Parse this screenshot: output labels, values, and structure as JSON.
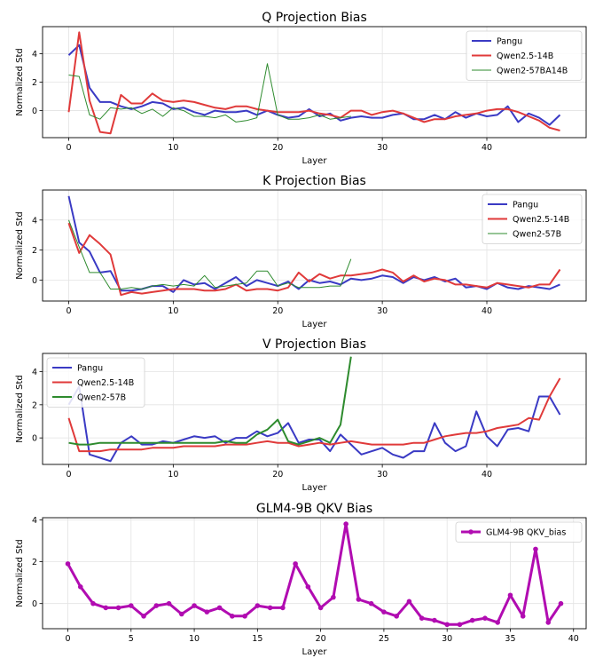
{
  "chart_data": [
    {
      "type": "line",
      "title": "Q Projection Bias",
      "xlabel": "Layer",
      "ylabel": "Normalized Std",
      "xlim": [
        -2.5,
        49.5
      ],
      "ylim": [
        -1.9,
        5.9
      ],
      "xticks": [
        0,
        10,
        20,
        30,
        40
      ],
      "yticks": [
        0,
        2,
        4
      ],
      "grid": true,
      "legend_position": "top-right",
      "series": [
        {
          "name": "Pangu",
          "color": "#3a3ac4",
          "width": 2,
          "x": [
            0,
            1,
            2,
            3,
            4,
            5,
            6,
            7,
            8,
            9,
            10,
            11,
            12,
            13,
            14,
            15,
            16,
            17,
            18,
            19,
            20,
            21,
            22,
            23,
            24,
            25,
            26,
            27,
            28,
            29,
            30,
            31,
            32,
            33,
            34,
            35,
            36,
            37,
            38,
            39,
            40,
            41,
            42,
            43,
            44,
            45,
            46,
            47
          ],
          "values": [
            3.9,
            4.6,
            1.6,
            0.6,
            0.6,
            0.3,
            0.1,
            0.3,
            0.6,
            0.5,
            0.1,
            0.2,
            -0.1,
            -0.3,
            0.0,
            -0.1,
            -0.1,
            0.0,
            -0.3,
            0.0,
            -0.3,
            -0.5,
            -0.4,
            0.1,
            -0.4,
            -0.2,
            -0.7,
            -0.5,
            -0.4,
            -0.5,
            -0.5,
            -0.3,
            -0.2,
            -0.6,
            -0.6,
            -0.3,
            -0.6,
            -0.1,
            -0.5,
            -0.2,
            -0.4,
            -0.3,
            0.3,
            -0.8,
            -0.2,
            -0.5,
            -1.0,
            -0.3
          ]
        },
        {
          "name": "Qwen2.5-14B",
          "color": "#e03a3a",
          "width": 2,
          "x": [
            0,
            1,
            2,
            3,
            4,
            5,
            6,
            7,
            8,
            9,
            10,
            11,
            12,
            13,
            14,
            15,
            16,
            17,
            18,
            19,
            20,
            21,
            22,
            23,
            24,
            25,
            26,
            27,
            28,
            29,
            30,
            31,
            32,
            33,
            34,
            35,
            36,
            37,
            38,
            39,
            40,
            41,
            42,
            43,
            44,
            45,
            46,
            47
          ],
          "values": [
            -0.1,
            5.5,
            0.7,
            -1.5,
            -1.6,
            1.1,
            0.5,
            0.5,
            1.2,
            0.7,
            0.6,
            0.7,
            0.6,
            0.4,
            0.2,
            0.1,
            0.3,
            0.3,
            0.1,
            0.0,
            -0.1,
            -0.1,
            -0.1,
            0.0,
            -0.2,
            -0.3,
            -0.5,
            0.0,
            0.0,
            -0.3,
            -0.1,
            0.0,
            -0.2,
            -0.5,
            -0.8,
            -0.6,
            -0.6,
            -0.4,
            -0.3,
            -0.2,
            0.0,
            0.1,
            0.1,
            -0.1,
            -0.4,
            -0.7,
            -1.2,
            -1.4
          ]
        },
        {
          "name": "Qwen2-57BA14B",
          "color": "#2e8b2e",
          "width": 1,
          "x": [
            0,
            1,
            2,
            3,
            4,
            5,
            6,
            7,
            8,
            9,
            10,
            11,
            12,
            13,
            14,
            15,
            16,
            17,
            18,
            19,
            20,
            21,
            22,
            23,
            24,
            25,
            26,
            27
          ],
          "values": [
            2.5,
            2.4,
            -0.3,
            -0.6,
            0.2,
            0.1,
            0.2,
            -0.2,
            0.1,
            -0.4,
            0.2,
            0.0,
            -0.4,
            -0.4,
            -0.5,
            -0.3,
            -0.8,
            -0.7,
            -0.5,
            3.3,
            -0.3,
            -0.6,
            -0.6,
            -0.5,
            -0.3,
            -0.6,
            -0.5,
            -0.4
          ]
        }
      ]
    },
    {
      "type": "line",
      "title": "K Projection Bias",
      "xlabel": "Layer",
      "ylabel": "Normalized Std",
      "xlim": [
        -2.5,
        49.5
      ],
      "ylim": [
        -1.4,
        6.0
      ],
      "xticks": [
        0,
        10,
        20,
        30,
        40
      ],
      "yticks": [
        0,
        2,
        4
      ],
      "grid": true,
      "legend_position": "top-right",
      "series": [
        {
          "name": "Pangu",
          "color": "#3a3ac4",
          "width": 2,
          "x": [
            0,
            1,
            2,
            3,
            4,
            5,
            6,
            7,
            8,
            9,
            10,
            11,
            12,
            13,
            14,
            15,
            16,
            17,
            18,
            19,
            20,
            21,
            22,
            23,
            24,
            25,
            26,
            27,
            28,
            29,
            30,
            31,
            32,
            33,
            34,
            35,
            36,
            37,
            38,
            39,
            40,
            41,
            42,
            43,
            44,
            45,
            46,
            47
          ],
          "values": [
            5.6,
            2.5,
            1.9,
            0.5,
            0.6,
            -0.7,
            -0.7,
            -0.6,
            -0.4,
            -0.4,
            -0.8,
            0.0,
            -0.3,
            -0.2,
            -0.6,
            -0.2,
            0.2,
            -0.4,
            0.0,
            -0.2,
            -0.4,
            -0.1,
            -0.6,
            0.0,
            -0.2,
            -0.1,
            -0.3,
            0.1,
            0.0,
            0.1,
            0.3,
            0.2,
            -0.2,
            0.2,
            0.0,
            0.2,
            -0.1,
            0.1,
            -0.5,
            -0.4,
            -0.6,
            -0.2,
            -0.5,
            -0.6,
            -0.4,
            -0.5,
            -0.6,
            -0.3
          ]
        },
        {
          "name": "Qwen2.5-14B",
          "color": "#e03a3a",
          "width": 2,
          "x": [
            0,
            1,
            2,
            3,
            4,
            5,
            6,
            7,
            8,
            9,
            10,
            11,
            12,
            13,
            14,
            15,
            16,
            17,
            18,
            19,
            20,
            21,
            22,
            23,
            24,
            25,
            26,
            27,
            28,
            29,
            30,
            31,
            32,
            33,
            34,
            35,
            36,
            37,
            38,
            39,
            40,
            41,
            42,
            43,
            44,
            45,
            46,
            47
          ],
          "values": [
            3.8,
            1.8,
            3.0,
            2.4,
            1.7,
            -1.0,
            -0.8,
            -0.9,
            -0.8,
            -0.7,
            -0.6,
            -0.6,
            -0.6,
            -0.7,
            -0.7,
            -0.6,
            -0.3,
            -0.7,
            -0.6,
            -0.6,
            -0.7,
            -0.5,
            0.5,
            -0.1,
            0.4,
            0.1,
            0.3,
            0.3,
            0.4,
            0.5,
            0.7,
            0.5,
            -0.1,
            0.3,
            -0.1,
            0.1,
            0.0,
            -0.3,
            -0.3,
            -0.4,
            -0.5,
            -0.2,
            -0.3,
            -0.4,
            -0.5,
            -0.3,
            -0.3,
            0.7
          ]
        },
        {
          "name": "Qwen2-57B",
          "color": "#2e8b2e",
          "width": 1,
          "x": [
            0,
            1,
            2,
            3,
            4,
            5,
            6,
            7,
            8,
            9,
            10,
            11,
            12,
            13,
            14,
            15,
            16,
            17,
            18,
            19,
            20,
            21,
            22,
            23,
            24,
            25,
            26,
            27
          ],
          "values": [
            4.0,
            2.2,
            0.5,
            0.5,
            -0.6,
            -0.6,
            -0.5,
            -0.6,
            -0.4,
            -0.3,
            -0.4,
            -0.3,
            -0.4,
            0.3,
            -0.5,
            -0.4,
            -0.3,
            -0.2,
            0.6,
            0.6,
            -0.4,
            -0.2,
            -0.5,
            -0.5,
            -0.5,
            -0.4,
            -0.4,
            1.4
          ]
        }
      ]
    },
    {
      "type": "line",
      "title": "V Projection Bias",
      "xlabel": "Layer",
      "ylabel": "Normalized Std",
      "xlim": [
        -2.5,
        49.5
      ],
      "ylim": [
        -1.6,
        5.1
      ],
      "xticks": [
        0,
        10,
        20,
        30,
        40
      ],
      "yticks": [
        0,
        2,
        4
      ],
      "grid": true,
      "legend_position": "top-left",
      "series": [
        {
          "name": "Pangu",
          "color": "#3a3ac4",
          "width": 2,
          "x": [
            0,
            1,
            2,
            3,
            4,
            5,
            6,
            7,
            8,
            9,
            10,
            11,
            12,
            13,
            14,
            15,
            16,
            17,
            18,
            19,
            20,
            21,
            22,
            23,
            24,
            25,
            26,
            27,
            28,
            29,
            30,
            31,
            32,
            33,
            34,
            35,
            36,
            37,
            38,
            39,
            40,
            41,
            42,
            43,
            44,
            45,
            46,
            47
          ],
          "values": [
            2.0,
            3.1,
            -1.0,
            -1.2,
            -1.4,
            -0.3,
            0.1,
            -0.4,
            -0.4,
            -0.2,
            -0.3,
            -0.1,
            0.1,
            0.0,
            0.1,
            -0.3,
            0.0,
            0.0,
            0.4,
            0.1,
            0.3,
            0.9,
            -0.3,
            -0.1,
            -0.1,
            -0.8,
            0.2,
            -0.4,
            -1.0,
            -0.8,
            -0.6,
            -1.0,
            -1.2,
            -0.8,
            -0.8,
            0.9,
            -0.3,
            -0.8,
            -0.5,
            1.6,
            0.1,
            -0.5,
            0.5,
            0.6,
            0.4,
            2.5,
            2.5,
            1.4
          ]
        },
        {
          "name": "Qwen2.5-14B",
          "color": "#e03a3a",
          "width": 2,
          "x": [
            0,
            1,
            2,
            3,
            4,
            5,
            6,
            7,
            8,
            9,
            10,
            11,
            12,
            13,
            14,
            15,
            16,
            17,
            18,
            19,
            20,
            21,
            22,
            23,
            24,
            25,
            26,
            27,
            28,
            29,
            30,
            31,
            32,
            33,
            34,
            35,
            36,
            37,
            38,
            39,
            40,
            41,
            42,
            43,
            44,
            45,
            46,
            47
          ],
          "values": [
            1.2,
            -0.8,
            -0.8,
            -0.8,
            -0.7,
            -0.7,
            -0.7,
            -0.7,
            -0.6,
            -0.6,
            -0.6,
            -0.5,
            -0.5,
            -0.5,
            -0.5,
            -0.4,
            -0.4,
            -0.4,
            -0.3,
            -0.2,
            -0.3,
            -0.3,
            -0.5,
            -0.4,
            -0.3,
            -0.4,
            -0.3,
            -0.2,
            -0.3,
            -0.4,
            -0.4,
            -0.4,
            -0.4,
            -0.3,
            -0.3,
            -0.1,
            0.1,
            0.2,
            0.3,
            0.3,
            0.4,
            0.6,
            0.7,
            0.8,
            1.2,
            1.1,
            2.5,
            3.6
          ]
        },
        {
          "name": "Qwen2-57B",
          "color": "#2e8b2e",
          "width": 2,
          "x": [
            0,
            1,
            2,
            3,
            4,
            5,
            6,
            7,
            8,
            9,
            10,
            11,
            12,
            13,
            14,
            15,
            16,
            17,
            18,
            19,
            20,
            21,
            22,
            23,
            24,
            25,
            26,
            27
          ],
          "values": [
            -0.3,
            -0.4,
            -0.4,
            -0.3,
            -0.3,
            -0.3,
            -0.3,
            -0.3,
            -0.3,
            -0.3,
            -0.3,
            -0.3,
            -0.3,
            -0.3,
            -0.3,
            -0.2,
            -0.3,
            -0.3,
            0.2,
            0.5,
            1.1,
            -0.2,
            -0.4,
            -0.2,
            0.0,
            -0.3,
            0.8,
            4.9
          ]
        }
      ]
    },
    {
      "type": "line",
      "title": "GLM4-9B QKV Bias",
      "xlabel": "Layer",
      "ylabel": "Normalized Std",
      "xlim": [
        -2.0,
        41.0
      ],
      "ylim": [
        -1.2,
        4.1
      ],
      "xticks": [
        0,
        5,
        10,
        15,
        20,
        25,
        30,
        35,
        40
      ],
      "yticks": [
        0,
        2,
        4
      ],
      "grid": true,
      "legend_position": "top-right",
      "series": [
        {
          "name": "GLM4-9B QKV_bias",
          "color": "#b10cb1",
          "width": 3,
          "markers": true,
          "x": [
            0,
            1,
            2,
            3,
            4,
            5,
            6,
            7,
            8,
            9,
            10,
            11,
            12,
            13,
            14,
            15,
            16,
            17,
            18,
            19,
            20,
            21,
            22,
            23,
            24,
            25,
            26,
            27,
            28,
            29,
            30,
            31,
            32,
            33,
            34,
            35,
            36,
            37,
            38,
            39
          ],
          "values": [
            1.9,
            0.8,
            0.0,
            -0.2,
            -0.2,
            -0.1,
            -0.6,
            -0.1,
            0.0,
            -0.5,
            -0.1,
            -0.4,
            -0.2,
            -0.6,
            -0.6,
            -0.1,
            -0.2,
            -0.2,
            1.9,
            0.8,
            -0.2,
            0.3,
            3.8,
            0.2,
            0.0,
            -0.4,
            -0.6,
            0.1,
            -0.7,
            -0.8,
            -1.0,
            -1.0,
            -0.8,
            -0.7,
            -0.9,
            0.4,
            -0.6,
            2.6,
            -0.9,
            0.0
          ]
        }
      ]
    }
  ]
}
